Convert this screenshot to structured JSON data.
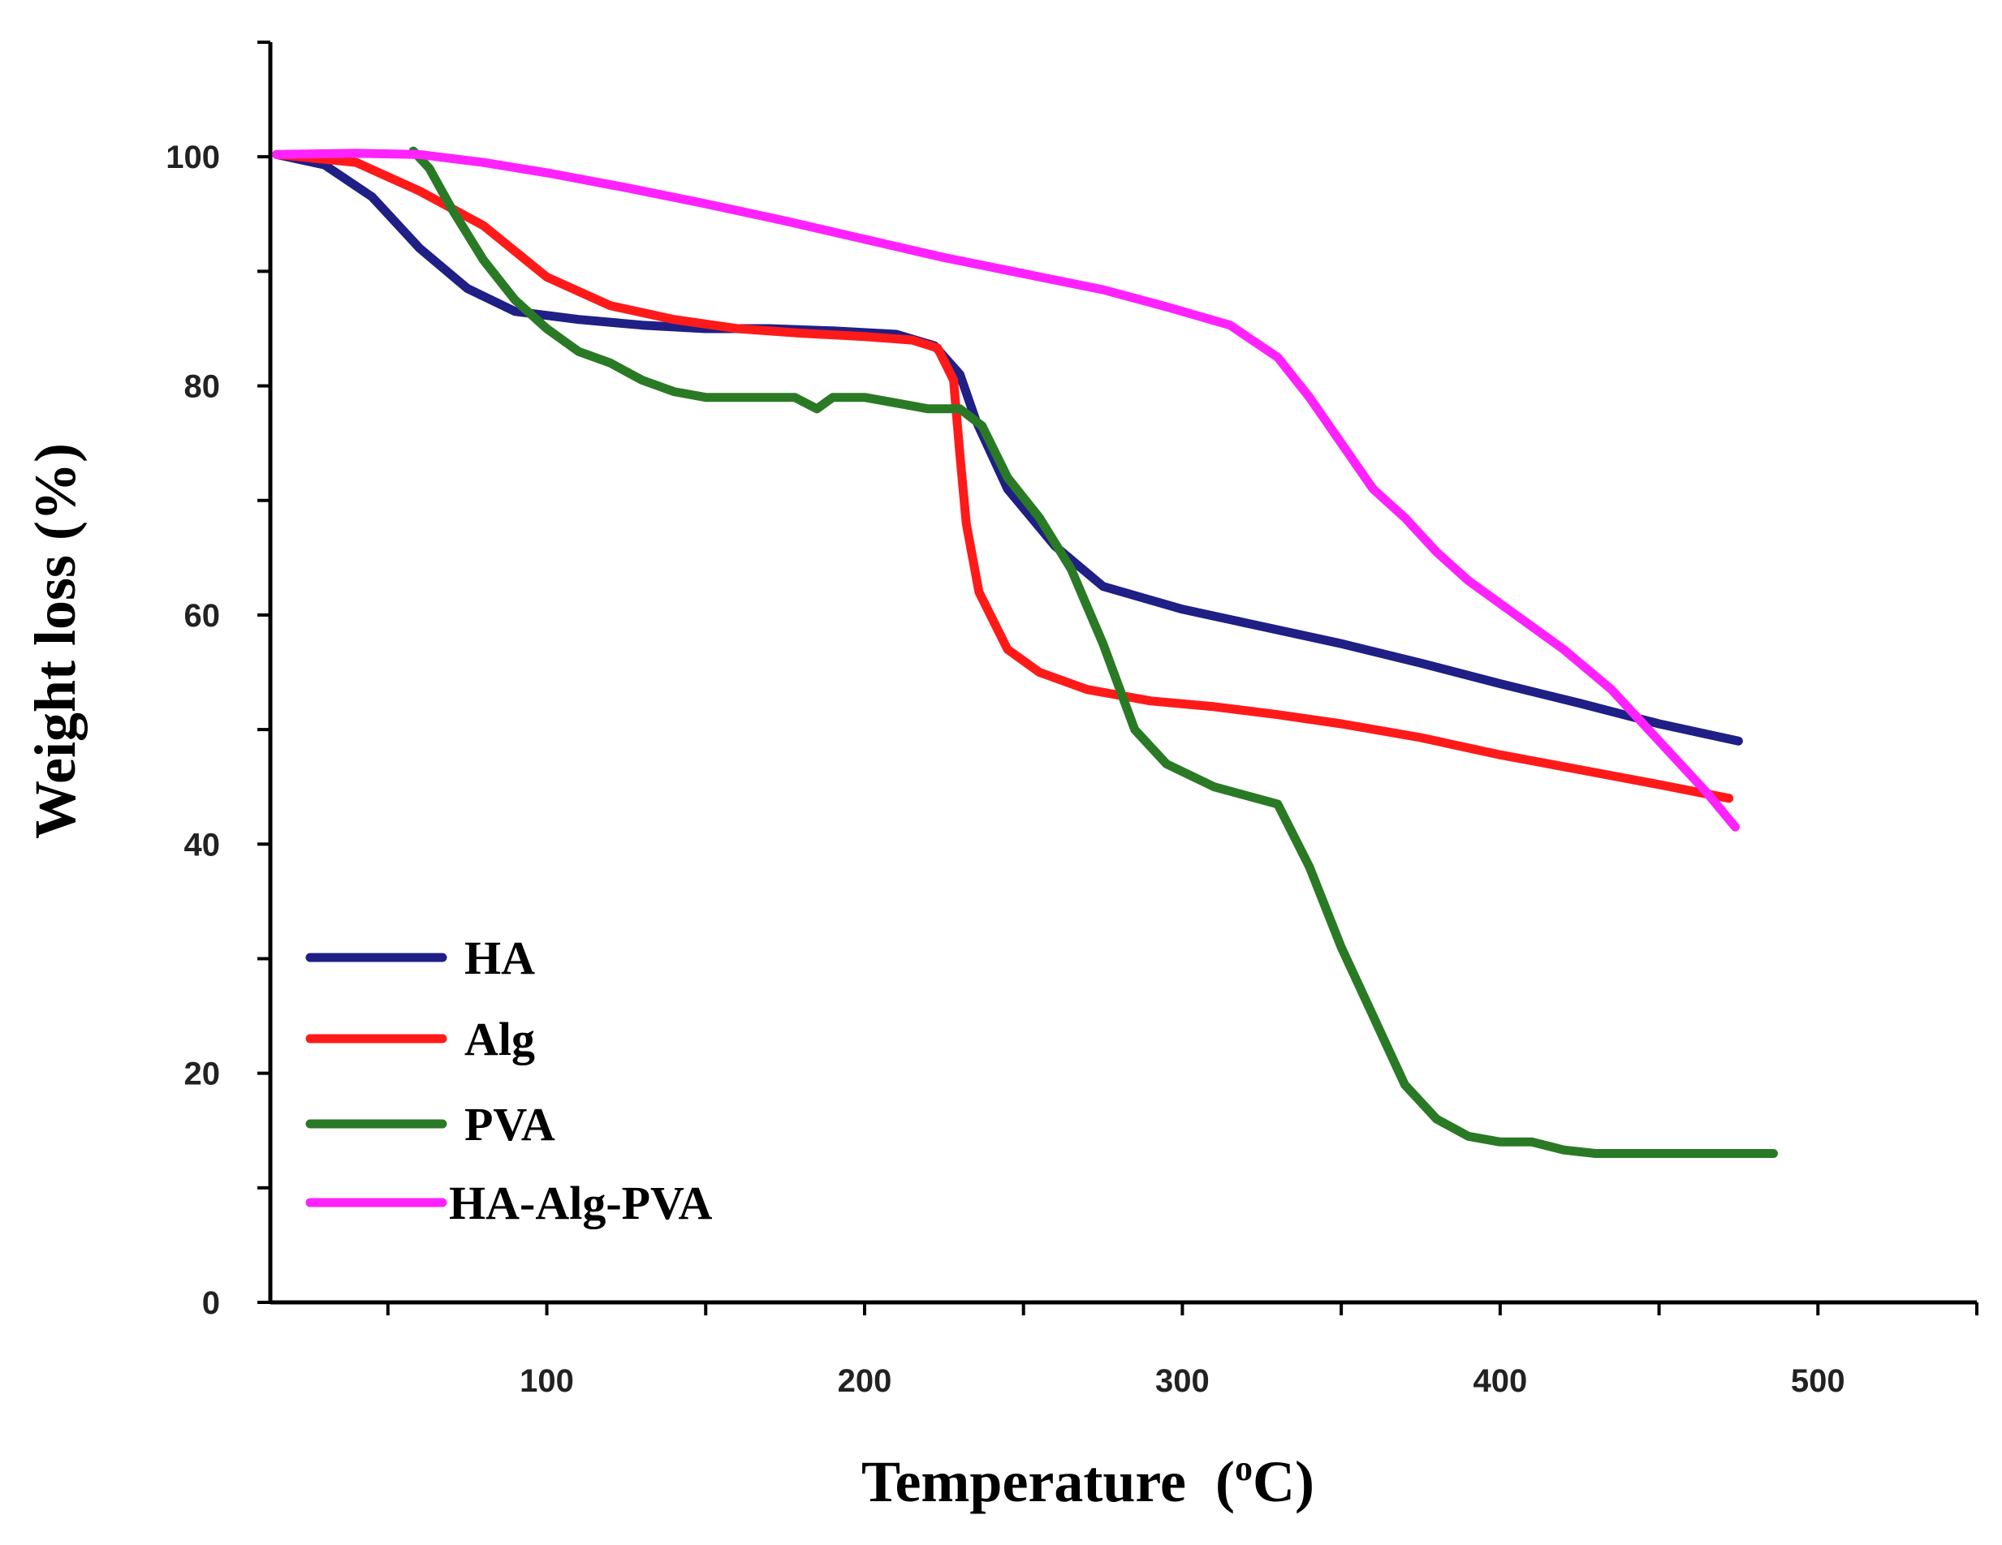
{
  "chart_data": {
    "type": "line",
    "title": "",
    "xlabel": "Temperature",
    "xlabel_unit_super": "o",
    "xlabel_unit_main": "C",
    "ylabel": "Weight loss (%)",
    "xlim": [
      13,
      550
    ],
    "ylim": [
      0,
      110
    ],
    "xticks": [
      100,
      200,
      300,
      400,
      500
    ],
    "yticks": [
      0,
      20,
      40,
      60,
      80,
      100
    ],
    "legend_position": "bottom-left",
    "grid": false,
    "series": [
      {
        "name": "HA",
        "color": "#1f1f86",
        "points": [
          [
            15,
            100.2
          ],
          [
            30,
            99.3
          ],
          [
            45,
            96.5
          ],
          [
            60,
            92
          ],
          [
            75,
            88.5
          ],
          [
            90,
            86.5
          ],
          [
            110,
            85.8
          ],
          [
            130,
            85.3
          ],
          [
            150,
            85
          ],
          [
            170,
            85
          ],
          [
            190,
            84.8
          ],
          [
            210,
            84.5
          ],
          [
            222,
            83.5
          ],
          [
            230,
            81
          ],
          [
            235,
            77
          ],
          [
            245,
            71
          ],
          [
            260,
            66
          ],
          [
            275,
            62.5
          ],
          [
            300,
            60.5
          ],
          [
            325,
            59
          ],
          [
            350,
            57.5
          ],
          [
            375,
            55.8
          ],
          [
            400,
            54
          ],
          [
            425,
            52.3
          ],
          [
            450,
            50.5
          ],
          [
            475,
            49
          ]
        ]
      },
      {
        "name": "Alg",
        "color": "#ff1a1a",
        "points": [
          [
            15,
            100.2
          ],
          [
            40,
            99.5
          ],
          [
            60,
            97
          ],
          [
            80,
            94
          ],
          [
            100,
            89.5
          ],
          [
            120,
            87
          ],
          [
            140,
            85.8
          ],
          [
            160,
            85
          ],
          [
            180,
            84.6
          ],
          [
            200,
            84.3
          ],
          [
            215,
            84
          ],
          [
            223,
            83.3
          ],
          [
            228,
            80.5
          ],
          [
            230,
            74
          ],
          [
            232,
            68
          ],
          [
            236,
            62
          ],
          [
            245,
            57
          ],
          [
            255,
            55
          ],
          [
            270,
            53.5
          ],
          [
            290,
            52.5
          ],
          [
            310,
            52
          ],
          [
            330,
            51.3
          ],
          [
            350,
            50.5
          ],
          [
            375,
            49.3
          ],
          [
            400,
            47.8
          ],
          [
            425,
            46.5
          ],
          [
            450,
            45.2
          ],
          [
            472,
            44
          ]
        ]
      },
      {
        "name": "PVA",
        "color": "#2a7a25",
        "points": [
          [
            58,
            100.5
          ],
          [
            63,
            99
          ],
          [
            70,
            95.5
          ],
          [
            80,
            91
          ],
          [
            90,
            87.5
          ],
          [
            100,
            85
          ],
          [
            110,
            83
          ],
          [
            120,
            82
          ],
          [
            130,
            80.5
          ],
          [
            140,
            79.5
          ],
          [
            150,
            79
          ],
          [
            160,
            79
          ],
          [
            170,
            79
          ],
          [
            178,
            79
          ],
          [
            185,
            78
          ],
          [
            190,
            79
          ],
          [
            200,
            79
          ],
          [
            210,
            78.5
          ],
          [
            220,
            78
          ],
          [
            230,
            78
          ],
          [
            237,
            76.5
          ],
          [
            245,
            72
          ],
          [
            255,
            68.5
          ],
          [
            265,
            64
          ],
          [
            275,
            57.5
          ],
          [
            285,
            50
          ],
          [
            295,
            47
          ],
          [
            310,
            45
          ],
          [
            330,
            43.5
          ],
          [
            340,
            38
          ],
          [
            350,
            31
          ],
          [
            360,
            25
          ],
          [
            370,
            19
          ],
          [
            380,
            16
          ],
          [
            390,
            14.5
          ],
          [
            400,
            14
          ],
          [
            410,
            14
          ],
          [
            420,
            13.3
          ],
          [
            430,
            13
          ],
          [
            450,
            13
          ],
          [
            470,
            13
          ],
          [
            486,
            13
          ]
        ]
      },
      {
        "name": "HA-Alg-PVA",
        "color": "#ff22ff",
        "points": [
          [
            15,
            100.2
          ],
          [
            40,
            100.3
          ],
          [
            60,
            100.2
          ],
          [
            80,
            99.5
          ],
          [
            100,
            98.6
          ],
          [
            125,
            97.3
          ],
          [
            150,
            95.9
          ],
          [
            175,
            94.4
          ],
          [
            200,
            92.8
          ],
          [
            225,
            91.2
          ],
          [
            250,
            89.8
          ],
          [
            275,
            88.4
          ],
          [
            295,
            86.9
          ],
          [
            315,
            85.3
          ],
          [
            330,
            82.5
          ],
          [
            340,
            79
          ],
          [
            350,
            75
          ],
          [
            360,
            71
          ],
          [
            370,
            68.5
          ],
          [
            380,
            65.5
          ],
          [
            390,
            63
          ],
          [
            405,
            60
          ],
          [
            420,
            57
          ],
          [
            435,
            53.5
          ],
          [
            450,
            49
          ],
          [
            465,
            44.5
          ],
          [
            474,
            41.5
          ]
        ]
      }
    ]
  }
}
